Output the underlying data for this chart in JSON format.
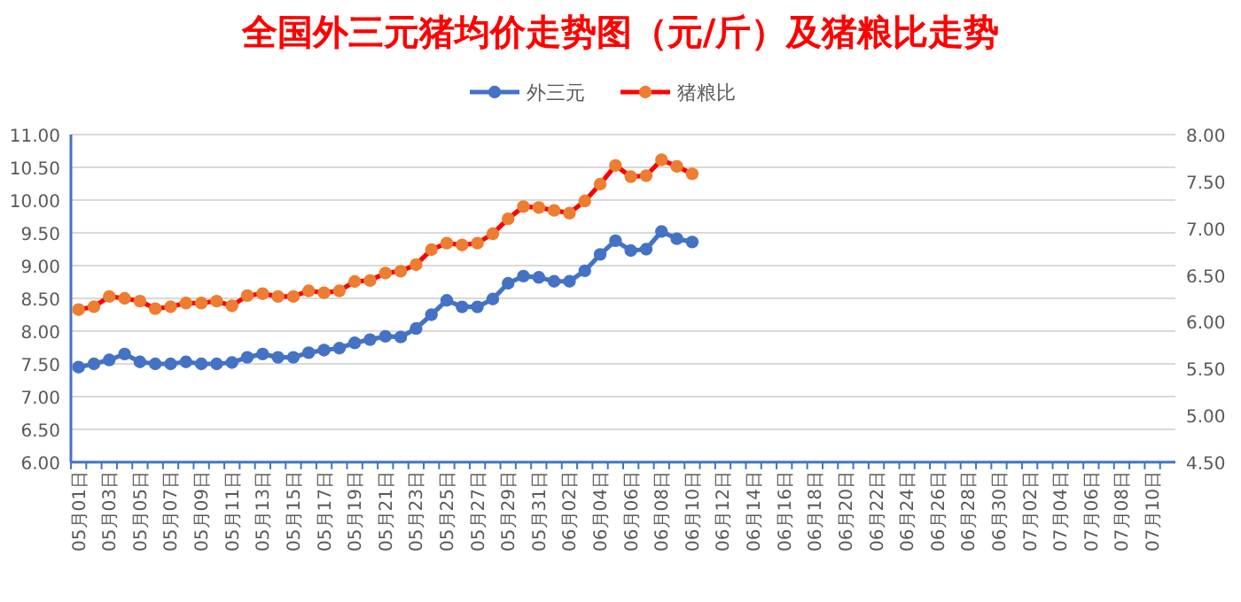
{
  "chart_data": {
    "type": "line",
    "title": "全国外三元猪均价走势图（元/斤）及猪粮比走势",
    "categories": [
      "05月01日",
      null,
      "05月03日",
      null,
      "05月05日",
      null,
      "05月07日",
      null,
      "05月09日",
      null,
      "05月11日",
      null,
      "05月13日",
      null,
      "05月15日",
      null,
      "05月17日",
      null,
      "05月19日",
      null,
      "05月21日",
      null,
      "05月23日",
      null,
      "05月25日",
      null,
      "05月27日",
      null,
      "05月29日",
      null,
      "05月31日",
      null,
      "06月02日",
      null,
      "06月04日",
      null,
      "06月06日",
      null,
      "06月08日",
      null,
      "06月10日",
      null,
      "06月12日",
      null,
      "06月14日",
      null,
      "06月16日",
      null,
      "06月18日",
      null,
      "06月20日",
      null,
      "06月22日",
      null,
      "06月24日",
      null,
      "06月26日",
      null,
      "06月28日",
      null,
      "06月30日",
      null,
      "07月02日",
      null,
      "07月04日",
      null,
      "07月06日",
      null,
      "07月08日",
      null,
      "07月10日",
      null
    ],
    "series": [
      {
        "name": "外三元",
        "color": "#4472c4",
        "values": [
          7.45,
          7.5,
          7.56,
          7.65,
          7.53,
          7.5,
          7.5,
          7.53,
          7.5,
          7.5,
          7.52,
          7.6,
          7.65,
          7.6,
          7.6,
          7.67,
          7.71,
          7.74,
          7.82,
          7.87,
          7.92,
          7.91,
          8.04,
          8.25,
          8.47,
          8.37,
          8.37,
          8.49,
          8.73,
          8.84,
          8.82,
          8.76,
          8.76,
          8.92,
          9.17,
          9.38,
          9.23,
          9.25,
          9.52,
          9.41,
          9.36,
          null,
          null,
          null,
          null,
          null,
          null,
          null,
          null,
          null,
          null,
          null,
          null,
          null,
          null,
          null,
          null,
          null,
          null,
          null,
          null,
          null,
          null,
          null,
          null,
          null,
          null,
          null,
          null,
          null,
          null,
          null
        ]
      },
      {
        "name": "猪粮比",
        "color": "#ff0000",
        "axis": "y2",
        "colors": [
          "#ed7d31",
          "#ed7d31",
          "#ed7d31",
          "#ed7d31",
          "#ed7d31",
          "#ed7d31",
          "#ed7d31",
          "#ed7d31",
          "#ed7d31",
          "#ed7d31",
          "#ed7d31",
          "#ed7d31",
          "#ed7d31",
          "#ed7d31",
          "#ed7d31",
          "#ed7d31",
          "#ed7d31",
          "#ed7d31",
          "#ed7d31",
          "#ed7d31",
          "#ed7d31",
          "#ed7d31",
          "#ed7d31",
          "#ed7d31",
          "#ed7d31",
          "#ed7d31",
          "#ed7d31",
          "#ed7d31",
          "#ed7d31",
          "#ed7d31",
          "#ed7d31",
          "#ed7d31",
          "#ed7d31",
          "#ed7d31",
          "#ed7d31",
          "#ed7d31",
          "#ed7d31",
          "#ed7d31",
          "#ed7d31",
          "#ed7d31",
          "#ed7d31",
          null,
          null,
          null,
          null,
          null,
          null,
          null,
          null,
          null,
          null,
          null,
          null,
          null,
          null,
          null,
          null,
          null,
          null,
          null,
          null,
          null,
          null,
          null,
          null,
          null,
          null,
          null,
          null,
          null,
          null,
          null
        ],
        "values": [
          6.13,
          6.16,
          6.27,
          6.25,
          6.22,
          6.14,
          6.16,
          6.2,
          6.2,
          6.22,
          6.17,
          6.28,
          6.3,
          6.27,
          6.27,
          6.33,
          6.31,
          6.33,
          6.43,
          6.44,
          6.52,
          6.54,
          6.61,
          6.77,
          6.84,
          6.82,
          6.84,
          6.94,
          7.1,
          7.23,
          7.22,
          7.19,
          7.16,
          7.29,
          7.47,
          7.67,
          7.55,
          7.56,
          7.73,
          7.66,
          7.58,
          null,
          null,
          null,
          null,
          null,
          null,
          null,
          null,
          null,
          null,
          null,
          null,
          null,
          null,
          null,
          null,
          null,
          null,
          null,
          null,
          null,
          null,
          null,
          null,
          null,
          null,
          null,
          null,
          null,
          null,
          null
        ]
      }
    ],
    "ylim": [
      6,
      11
    ],
    "yticks": [
      {
        "value": 6,
        "label": "6.00"
      },
      {
        "value": 6.5,
        "label": "6.50"
      },
      {
        "value": 7,
        "label": "7.00"
      },
      {
        "value": 7.5,
        "label": "7.50"
      },
      {
        "value": 8,
        "label": "8.00"
      },
      {
        "value": 8.5,
        "label": "8.50"
      },
      {
        "value": 9,
        "label": "9.00"
      },
      {
        "value": 9.5,
        "label": "9.50"
      },
      {
        "value": 10,
        "label": "10.00"
      },
      {
        "value": 10.5,
        "label": "10.50"
      },
      {
        "value": 11,
        "label": "11.00"
      }
    ],
    "y2lim": [
      4.5,
      8
    ],
    "y2ticks": [
      {
        "value": 4.5,
        "label": "4.50"
      },
      {
        "value": 5,
        "label": "5.00"
      },
      {
        "value": 5.5,
        "label": "5.50"
      },
      {
        "value": 6,
        "label": "6.00"
      },
      {
        "value": 6.5,
        "label": "6.50"
      },
      {
        "value": 7,
        "label": "7.00"
      },
      {
        "value": 7.5,
        "label": "7.50"
      },
      {
        "value": 8,
        "label": "8.00"
      }
    ],
    "grid": "y",
    "legend": "top",
    "marker": "circle"
  }
}
